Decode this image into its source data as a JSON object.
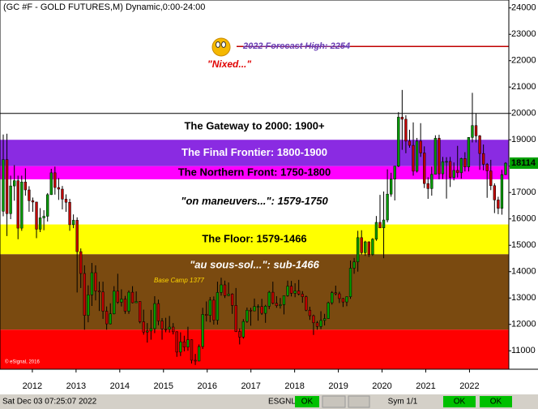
{
  "chart_data": {
    "type": "candlestick",
    "title": "(GC #F - GOLD FUTURES,M) Dynamic,0:00-24:00",
    "ylim": [
      10300,
      24300
    ],
    "yticks": [
      11000,
      12000,
      13000,
      14000,
      15000,
      16000,
      17000,
      18000,
      19000,
      20000,
      21000,
      22000,
      23000,
      24000
    ],
    "xlim": [
      2011.26,
      2022.9
    ],
    "xticks": [
      2012,
      2013,
      2014,
      2015,
      2016,
      2017,
      2018,
      2019,
      2020,
      2021,
      2022
    ],
    "up_color": "#009a00",
    "down_color": "#c00000",
    "bands": [
      {
        "label": "The Gateway to 2000:  1900+",
        "from": 19000,
        "to": 20000,
        "color": "#ffffff",
        "text_color": "#000000"
      },
      {
        "label": "The Final Frontier:  1800-1900",
        "from": 18000,
        "to": 19000,
        "color": "#8a2be2",
        "text_color": "#ffffff"
      },
      {
        "label": "The Northern Front:  1750-1800",
        "from": 17500,
        "to": 18000,
        "color": "#ff00ff",
        "text_color": "#000000"
      },
      {
        "label": "\"on maneuvers...\":  1579-1750",
        "from": 15790,
        "to": 17500,
        "color": "#ffffff",
        "text_color": "#000000"
      },
      {
        "label": "The Floor:  1579-1466",
        "from": 14660,
        "to": 15790,
        "color": "#ffff00",
        "text_color": "#000000"
      },
      {
        "label": "\"au sous-sol...\":  sub-1466",
        "from": 11800,
        "to": 14660,
        "color": "#7a4a10",
        "text_color": "#ffffff"
      },
      {
        "from": 10300,
        "to": 11800,
        "color": "#ff0000"
      }
    ],
    "gateway_line": 20000,
    "forecast": {
      "label": "2022 Forecast High:  2254",
      "value": 22540,
      "note": "\"Nixed...\""
    },
    "base_camp_label": "Base Camp 1377",
    "last_price": 18114,
    "copyright": "© eSignal, 2016",
    "status_bar": {
      "datetime": "Sat Dec 03 07:25:07 2022",
      "feed": "ESGNL:",
      "feed_status": "OK",
      "symbol": "Sym 1/1",
      "status_2": "OK",
      "status_3": "OK"
    },
    "ohlc": [
      [
        16290,
        19200,
        16100,
        18250
      ],
      [
        18250,
        19230,
        15350,
        16200
      ],
      [
        16200,
        17640,
        15990,
        17250
      ],
      [
        17250,
        18040,
        16690,
        17450
      ],
      [
        17450,
        17640,
        15230,
        15650
      ],
      [
        15650,
        17640,
        15550,
        17400
      ],
      [
        17400,
        17920,
        16880,
        17100
      ],
      [
        17100,
        17240,
        16270,
        16690
      ],
      [
        16690,
        16810,
        16270,
        16640
      ],
      [
        16640,
        16650,
        15270,
        15610
      ],
      [
        15610,
        16410,
        15500,
        16040
      ],
      [
        16040,
        16330,
        15570,
        16100
      ],
      [
        16100,
        16980,
        15900,
        16920
      ],
      [
        16920,
        17900,
        16910,
        17750
      ],
      [
        17750,
        17980,
        16920,
        17190
      ],
      [
        17190,
        17550,
        16720,
        17130
      ],
      [
        17130,
        17250,
        16360,
        16750
      ],
      [
        16750,
        16930,
        16270,
        16630
      ],
      [
        16630,
        16760,
        15550,
        15780
      ],
      [
        15780,
        16170,
        15650,
        15950
      ],
      [
        15950,
        16060,
        13210,
        14760
      ],
      [
        14760,
        14880,
        13380,
        13930
      ],
      [
        13930,
        14240,
        11800,
        12340
      ],
      [
        12340,
        13480,
        12080,
        13120
      ],
      [
        13120,
        14330,
        12700,
        13960
      ],
      [
        13960,
        14240,
        12910,
        13270
      ],
      [
        13270,
        13620,
        12510,
        13230
      ],
      [
        13230,
        13620,
        12210,
        12500
      ],
      [
        12500,
        12680,
        11800,
        12020
      ],
      [
        12020,
        12800,
        12000,
        12400
      ],
      [
        12400,
        13450,
        12380,
        13260
      ],
      [
        13260,
        13920,
        12780,
        12840
      ],
      [
        12840,
        13330,
        12680,
        12960
      ],
      [
        12960,
        13080,
        12400,
        12500
      ],
      [
        12500,
        13290,
        12400,
        13220
      ],
      [
        13220,
        13450,
        12800,
        12820
      ],
      [
        12820,
        13250,
        12820,
        12870
      ],
      [
        12870,
        12880,
        12040,
        12100
      ],
      [
        12100,
        12560,
        11610,
        11710
      ],
      [
        11710,
        12050,
        11310,
        11750
      ],
      [
        11750,
        12550,
        11420,
        11840
      ],
      [
        11840,
        13070,
        11670,
        12790
      ],
      [
        12790,
        12940,
        11970,
        12130
      ],
      [
        12130,
        12240,
        11420,
        11830
      ],
      [
        11830,
        12250,
        11700,
        11820
      ],
      [
        11820,
        12320,
        11690,
        11900
      ],
      [
        11900,
        12050,
        11620,
        11720
      ],
      [
        11720,
        11740,
        10770,
        10950
      ],
      [
        10950,
        11700,
        10800,
        11340
      ],
      [
        11340,
        11570,
        10980,
        11140
      ],
      [
        11140,
        11910,
        11000,
        11420
      ],
      [
        11420,
        11430,
        10520,
        10640
      ],
      [
        10640,
        10880,
        10460,
        10610
      ],
      [
        10610,
        11240,
        10600,
        11160
      ],
      [
        11160,
        12630,
        11070,
        12380
      ],
      [
        12380,
        12870,
        12110,
        12340
      ],
      [
        12340,
        13040,
        12080,
        12920
      ],
      [
        12920,
        13060,
        11990,
        12160
      ],
      [
        12160,
        13620,
        11990,
        13210
      ],
      [
        13210,
        13770,
        13090,
        13500
      ],
      [
        13500,
        13660,
        13000,
        13090
      ],
      [
        13090,
        13590,
        13070,
        13150
      ],
      [
        13150,
        13180,
        12400,
        12720
      ],
      [
        12720,
        13380,
        11710,
        11730
      ],
      [
        11730,
        11850,
        11240,
        11520
      ],
      [
        11520,
        12200,
        11460,
        12110
      ],
      [
        12110,
        12640,
        12060,
        12540
      ],
      [
        12540,
        12630,
        11950,
        12510
      ],
      [
        12510,
        12980,
        12500,
        12680
      ],
      [
        12680,
        12760,
        12140,
        12680
      ],
      [
        12680,
        12970,
        12360,
        12420
      ],
      [
        12420,
        12740,
        12060,
        12690
      ],
      [
        12690,
        13270,
        12580,
        13220
      ],
      [
        13220,
        13620,
        12760,
        12800
      ],
      [
        12800,
        13070,
        12630,
        12710
      ],
      [
        12710,
        13000,
        12600,
        12750
      ],
      [
        12750,
        13090,
        12380,
        13090
      ],
      [
        13090,
        13660,
        13050,
        13450
      ],
      [
        13450,
        13650,
        13060,
        13180
      ],
      [
        13180,
        13560,
        13030,
        13270
      ],
      [
        13270,
        13690,
        13100,
        13150
      ],
      [
        13150,
        13260,
        12820,
        13050
      ],
      [
        13050,
        13090,
        12500,
        12540
      ],
      [
        12540,
        12670,
        12170,
        12330
      ],
      [
        12330,
        12370,
        11600,
        12060
      ],
      [
        12060,
        12130,
        11800,
        11920
      ],
      [
        11920,
        12500,
        11820,
        12150
      ],
      [
        12150,
        12400,
        11960,
        12220
      ],
      [
        12220,
        12860,
        12210,
        12820
      ],
      [
        12820,
        13260,
        12750,
        13200
      ],
      [
        13200,
        13470,
        13100,
        13160
      ],
      [
        13160,
        13240,
        12810,
        12980
      ],
      [
        12980,
        13000,
        12660,
        12850
      ],
      [
        12850,
        13060,
        12690,
        13050
      ],
      [
        13050,
        14420,
        12970,
        14130
      ],
      [
        14130,
        14520,
        13920,
        14370
      ],
      [
        14370,
        15550,
        14000,
        15290
      ],
      [
        15290,
        15570,
        14650,
        14720
      ],
      [
        14720,
        15170,
        14600,
        15130
      ],
      [
        15130,
        15150,
        14560,
        14650
      ],
      [
        14650,
        15270,
        14600,
        15230
      ],
      [
        15230,
        16110,
        15170,
        15870
      ],
      [
        15870,
        16910,
        15650,
        15660
      ],
      [
        15660,
        17040,
        14510,
        15960
      ],
      [
        15960,
        17880,
        15870,
        16940
      ],
      [
        16940,
        17750,
        16840,
        17510
      ],
      [
        17510,
        18000,
        16700,
        18000
      ],
      [
        18000,
        20050,
        17960,
        19860
      ],
      [
        19860,
        20890,
        18620,
        19780
      ],
      [
        19780,
        19930,
        18490,
        18950
      ],
      [
        18950,
        19380,
        18700,
        18790
      ],
      [
        18790,
        19660,
        17640,
        17810
      ],
      [
        17810,
        19070,
        17760,
        18950
      ],
      [
        18950,
        19630,
        18350,
        18500
      ],
      [
        18500,
        18750,
        17170,
        17340
      ],
      [
        17340,
        17580,
        16760,
        17150
      ],
      [
        17150,
        17980,
        16880,
        17690
      ],
      [
        17690,
        19170,
        17700,
        19060
      ],
      [
        19060,
        19190,
        17500,
        17710
      ],
      [
        17710,
        18350,
        17510,
        18170
      ],
      [
        18170,
        18340,
        16770,
        18180
      ],
      [
        18180,
        18350,
        17210,
        17570
      ],
      [
        17570,
        18140,
        17460,
        17840
      ],
      [
        17840,
        18770,
        17570,
        17750
      ],
      [
        17750,
        18320,
        17530,
        18290
      ],
      [
        18290,
        18530,
        17800,
        17970
      ],
      [
        17970,
        19100,
        17800,
        19090
      ],
      [
        19090,
        20780,
        18900,
        19540
      ],
      [
        19540,
        19990,
        18900,
        19150
      ],
      [
        19150,
        19180,
        17860,
        18480
      ],
      [
        18480,
        18820,
        17840,
        18070
      ],
      [
        18070,
        18120,
        16800,
        17820
      ],
      [
        17820,
        18240,
        17090,
        17260
      ],
      [
        17260,
        17350,
        16220,
        16720
      ],
      [
        16720,
        16840,
        16180,
        16400
      ],
      [
        16400,
        17860,
        16160,
        17680
      ],
      [
        17680,
        18150,
        17660,
        18114
      ]
    ]
  }
}
